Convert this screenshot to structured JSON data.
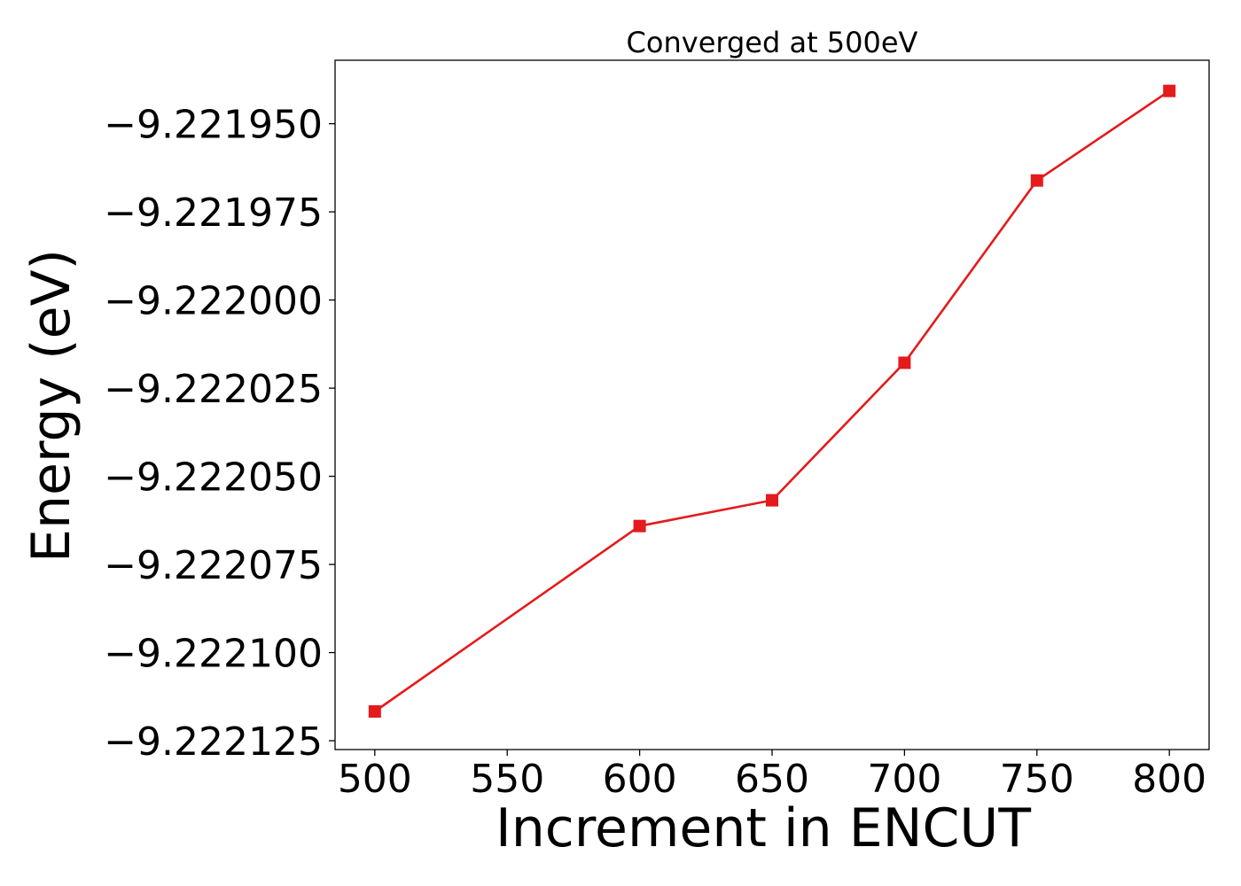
{
  "chart_data": {
    "type": "line",
    "title": "Converged at 500eV",
    "xlabel": "Increment in ENCUT",
    "ylabel": "Energy (eV)",
    "x": [
      500,
      600,
      650,
      700,
      750,
      800
    ],
    "series": [
      {
        "values": [
          -9.2221167,
          -9.2220641,
          -9.2220568,
          -9.2220178,
          -9.2219661,
          -9.2219407
        ],
        "color": "#e41a1c",
        "marker": "square"
      }
    ],
    "xticks": [
      500,
      550,
      600,
      650,
      700,
      750,
      800
    ],
    "xtick_labels": [
      "500",
      "550",
      "600",
      "650",
      "700",
      "750",
      "800"
    ],
    "yticks": [
      -9.22195,
      -9.221975,
      -9.222,
      -9.222025,
      -9.22205,
      -9.222075,
      -9.2221,
      -9.222125
    ],
    "ytick_labels": [
      "−9.221950",
      "−9.221975",
      "−9.222000",
      "−9.222025",
      "−9.222050",
      "−9.222075",
      "−9.222100",
      "−9.222125"
    ],
    "xlim": [
      485,
      815
    ],
    "ylim": [
      -9.2221275,
      -9.221932
    ],
    "grid": false,
    "legend": "none"
  }
}
